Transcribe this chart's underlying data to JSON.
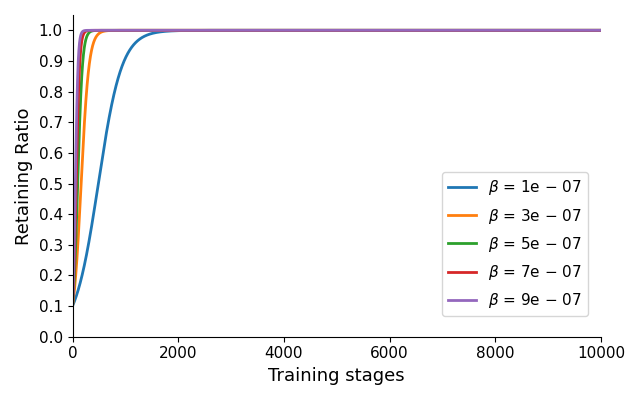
{
  "title": "",
  "xlabel": "Training stages",
  "ylabel": "Retaining Ratio",
  "xlim": [
    0,
    10000
  ],
  "ylim": [
    0.0,
    1.05
  ],
  "yticks": [
    0.0,
    0.1,
    0.2,
    0.3,
    0.4,
    0.5,
    0.6,
    0.7,
    0.8,
    0.9,
    1.0
  ],
  "xticks": [
    0,
    2000,
    4000,
    6000,
    8000,
    10000
  ],
  "series": [
    {
      "beta": 1e-07,
      "color": "#1f77b4"
    },
    {
      "beta": 3e-07,
      "color": "#ff7f0e"
    },
    {
      "beta": 5e-07,
      "color": "#2ca02c"
    },
    {
      "beta": 7e-07,
      "color": "#d62728"
    },
    {
      "beta": 9e-07,
      "color": "#9467bd"
    }
  ],
  "legend_labels": [
    "$\\beta$ = 1e $-$ 07",
    "$\\beta$ = 3e $-$ 07",
    "$\\beta$ = 5e $-$ 07",
    "$\\beta$ = 7e $-$ 07",
    "$\\beta$ = 9e $-$ 07"
  ],
  "scale": 45000.0,
  "figsize": [
    6.4,
    4.0
  ],
  "dpi": 100
}
